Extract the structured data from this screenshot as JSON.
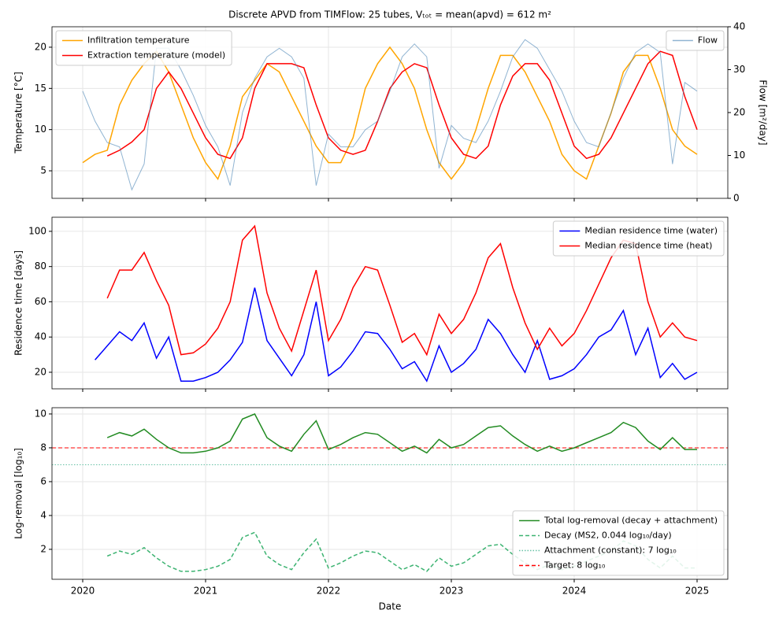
{
  "chart_data": [
    {
      "type": "line",
      "title": "Discrete APVD from TIMFlow: 25 tubes, Vₜₒₜ = mean(apvd) = 612 m²",
      "ylabel": "Temperature [°C]",
      "y2label": "Flow [m²/day]",
      "x": [
        2020,
        2020.1,
        2020.2,
        2020.3,
        2020.4,
        2020.5,
        2020.6,
        2020.7,
        2020.8,
        2020.9,
        2021,
        2021.1,
        2021.2,
        2021.3,
        2021.4,
        2021.5,
        2021.6,
        2021.7,
        2021.8,
        2021.9,
        2022,
        2022.1,
        2022.2,
        2022.3,
        2022.4,
        2022.5,
        2022.6,
        2022.7,
        2022.8,
        2022.9,
        2023,
        2023.1,
        2023.2,
        2023.3,
        2023.4,
        2023.5,
        2023.6,
        2023.7,
        2023.8,
        2023.9,
        2024,
        2024.1,
        2024.2,
        2024.3,
        2024.4,
        2024.5,
        2024.6,
        2024.7,
        2024.8,
        2024.9,
        2025
      ],
      "xlim": [
        2019.75,
        2025.25
      ],
      "xticks": [
        2020,
        2021,
        2022,
        2023,
        2024,
        2025
      ],
      "xtick_labels": false,
      "ylim": [
        1.66,
        22.48
      ],
      "yticks": [
        5,
        10,
        15,
        20
      ],
      "y2lim": [
        0,
        40
      ],
      "y2ticks": [
        0,
        10,
        20,
        30,
        40
      ],
      "grid": true,
      "legend": "upper left",
      "legend_y2": "upper right",
      "series": [
        {
          "name": "Infiltration temperature",
          "color": "#ffa500",
          "linestyle": "solid",
          "values": [
            6,
            7,
            7.5,
            13,
            16,
            18,
            19.5,
            17,
            13,
            9,
            6,
            4,
            8,
            14,
            16,
            18,
            17,
            14,
            11,
            8,
            6,
            6,
            9,
            15,
            18,
            20,
            18,
            15,
            10,
            6,
            4,
            6,
            10,
            15,
            19,
            19,
            17,
            14,
            11,
            7,
            5,
            4,
            8,
            12,
            17,
            19,
            19,
            15,
            10,
            8,
            7
          ]
        },
        {
          "name": "Extraction temperature (model)",
          "color": "#ff0000",
          "linestyle": "solid",
          "values": [
            null,
            null,
            6.8,
            7.5,
            8.5,
            10,
            15,
            17,
            15,
            12,
            9,
            7,
            6.5,
            9,
            15,
            18,
            18,
            18,
            17.5,
            13,
            9,
            7.5,
            7,
            7.5,
            11,
            15,
            17,
            18,
            17.5,
            13,
            9,
            7,
            6.5,
            8,
            13,
            16.5,
            18,
            18,
            16,
            12,
            8,
            6.5,
            7,
            9,
            12,
            15,
            18,
            19.5,
            19,
            14,
            10
          ]
        },
        {
          "name": "Flow",
          "color": "#4682b4",
          "linestyle": "solid",
          "axis": "y2",
          "values": [
            25,
            18,
            13,
            12,
            2,
            8,
            35,
            35,
            30,
            24,
            17,
            12,
            3,
            20,
            28,
            33,
            35,
            33,
            28,
            3,
            15,
            12,
            12,
            16,
            18,
            25,
            33,
            36,
            33,
            7,
            17,
            14,
            13,
            18,
            25,
            33,
            37,
            35,
            30,
            25,
            18,
            13,
            12,
            20,
            28,
            34,
            36,
            34,
            8,
            27,
            25
          ]
        }
      ]
    },
    {
      "type": "line",
      "ylabel": "Residence time [days]",
      "x": [
        2020,
        2020.1,
        2020.2,
        2020.3,
        2020.4,
        2020.5,
        2020.6,
        2020.7,
        2020.8,
        2020.9,
        2021,
        2021.1,
        2021.2,
        2021.3,
        2021.4,
        2021.5,
        2021.6,
        2021.7,
        2021.8,
        2021.9,
        2022,
        2022.1,
        2022.2,
        2022.3,
        2022.4,
        2022.5,
        2022.6,
        2022.7,
        2022.8,
        2022.9,
        2023,
        2023.1,
        2023.2,
        2023.3,
        2023.4,
        2023.5,
        2023.6,
        2023.7,
        2023.8,
        2023.9,
        2024,
        2024.1,
        2024.2,
        2024.3,
        2024.4,
        2024.5,
        2024.6,
        2024.7,
        2024.8,
        2024.9,
        2025
      ],
      "xlim": [
        2019.75,
        2025.25
      ],
      "xticks": [
        2020,
        2021,
        2022,
        2023,
        2024,
        2025
      ],
      "xtick_labels": false,
      "ylim": [
        10.6,
        108
      ],
      "yticks": [
        20,
        40,
        60,
        80,
        100
      ],
      "grid": true,
      "legend": "upper right",
      "series": [
        {
          "name": "Median residence time (water)",
          "color": "#0000ff",
          "linestyle": "solid",
          "values": [
            null,
            27,
            35,
            43,
            38,
            48,
            28,
            40,
            15,
            15,
            17,
            20,
            27,
            37,
            68,
            38,
            28,
            18,
            30,
            60,
            18,
            23,
            32,
            43,
            42,
            33,
            22,
            26,
            15,
            35,
            20,
            25,
            33,
            50,
            42,
            30,
            20,
            38,
            16,
            18,
            22,
            30,
            40,
            44,
            55,
            30,
            45,
            17,
            25,
            16,
            20
          ]
        },
        {
          "name": "Median residence time (heat)",
          "color": "#ff0000",
          "linestyle": "solid",
          "values": [
            null,
            null,
            62,
            78,
            78,
            88,
            72,
            58,
            30,
            31,
            36,
            45,
            60,
            95,
            103,
            65,
            45,
            32,
            55,
            78,
            38,
            50,
            68,
            80,
            78,
            58,
            37,
            42,
            30,
            53,
            42,
            50,
            65,
            85,
            93,
            68,
            48,
            33,
            45,
            35,
            42,
            55,
            70,
            85,
            95,
            93,
            60,
            40,
            48,
            40,
            38
          ]
        }
      ]
    },
    {
      "type": "line",
      "ylabel": "Log-removal [log₁₀]",
      "xlabel": "Date",
      "x": [
        2020,
        2020.1,
        2020.2,
        2020.3,
        2020.4,
        2020.5,
        2020.6,
        2020.7,
        2020.8,
        2020.9,
        2021,
        2021.1,
        2021.2,
        2021.3,
        2021.4,
        2021.5,
        2021.6,
        2021.7,
        2021.8,
        2021.9,
        2022,
        2022.1,
        2022.2,
        2022.3,
        2022.4,
        2022.5,
        2022.6,
        2022.7,
        2022.8,
        2022.9,
        2023,
        2023.1,
        2023.2,
        2023.3,
        2023.4,
        2023.5,
        2023.6,
        2023.7,
        2023.8,
        2023.9,
        2024,
        2024.1,
        2024.2,
        2024.3,
        2024.4,
        2024.5,
        2024.6,
        2024.7,
        2024.8,
        2024.9,
        2025
      ],
      "xlim": [
        2019.75,
        2025.25
      ],
      "xticks": [
        2020,
        2021,
        2022,
        2023,
        2024,
        2025
      ],
      "xtick_labels": true,
      "ylim": [
        0.23,
        10.37
      ],
      "yticks": [
        2,
        4,
        6,
        8,
        10
      ],
      "grid": true,
      "legend": "lower right",
      "series": [
        {
          "name": "Total log-removal (decay + attachment)",
          "color": "#228b22",
          "linestyle": "solid",
          "values": [
            null,
            null,
            8.6,
            8.9,
            8.7,
            9.1,
            8.5,
            8.0,
            7.7,
            7.7,
            7.8,
            8.0,
            8.4,
            9.7,
            10.0,
            8.6,
            8.1,
            7.8,
            8.8,
            9.6,
            7.9,
            8.2,
            8.6,
            8.9,
            8.8,
            8.3,
            7.8,
            8.1,
            7.7,
            8.5,
            8.0,
            8.2,
            8.7,
            9.2,
            9.3,
            8.7,
            8.2,
            7.8,
            8.1,
            7.8,
            8.0,
            8.3,
            8.6,
            8.9,
            9.5,
            9.2,
            8.4,
            7.9,
            8.6,
            7.9,
            7.9
          ]
        },
        {
          "name": "Decay (MS2, 0.044 log₁₀/day)",
          "color": "#3cb371",
          "linestyle": "dashed",
          "values": [
            null,
            null,
            1.6,
            1.9,
            1.7,
            2.1,
            1.5,
            1.0,
            0.7,
            0.7,
            0.8,
            1.0,
            1.4,
            2.7,
            3.0,
            1.6,
            1.1,
            0.8,
            1.8,
            2.6,
            0.9,
            1.2,
            1.6,
            1.9,
            1.8,
            1.3,
            0.8,
            1.1,
            0.7,
            1.5,
            1.0,
            1.2,
            1.7,
            2.2,
            2.3,
            1.7,
            1.2,
            0.8,
            1.1,
            0.8,
            1.0,
            1.3,
            1.6,
            1.9,
            2.5,
            2.2,
            1.4,
            0.9,
            1.6,
            0.9,
            0.9
          ]
        }
      ],
      "hlines": [
        {
          "name": "Attachment (constant): 7 log₁₀",
          "value": 7,
          "color": "#66c2a5",
          "linestyle": "dotted"
        },
        {
          "name": "Target: 8 log₁₀",
          "value": 8,
          "color": "#ff0000",
          "linestyle": "dashed"
        }
      ]
    }
  ]
}
